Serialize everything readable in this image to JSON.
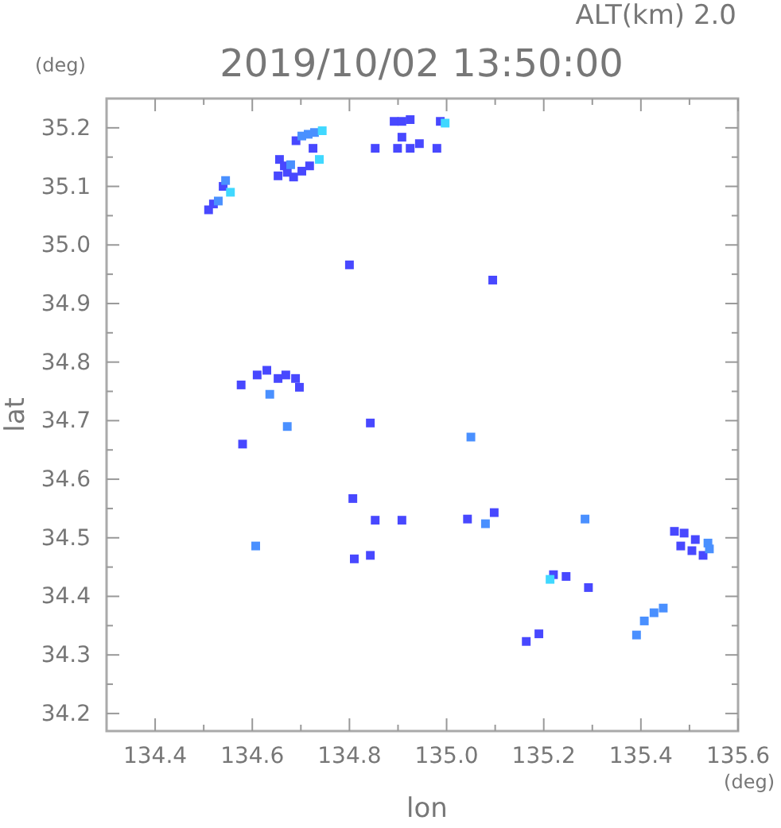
{
  "chart_data": {
    "type": "scatter",
    "title": "2019/10/02 13:50:00",
    "subtitle": "ALT(km) 2.0",
    "xlabel": "lon",
    "ylabel": "lat",
    "annotations": [
      "(deg)",
      "(deg)"
    ],
    "xlim": [
      134.3,
      135.6
    ],
    "ylim": [
      34.17,
      35.25
    ],
    "xticks": [
      134.4,
      {
        "value": 134.5,
        "label": null
      },
      134.6,
      {
        "value": 134.7,
        "label": null
      },
      134.8,
      {
        "value": 134.9,
        "label": null
      },
      {
        "value": 135.0,
        "label": "135.0"
      },
      {
        "value": 135.1,
        "label": null
      },
      135.2,
      {
        "value": 135.3,
        "label": null
      },
      135.4,
      {
        "value": 135.5,
        "label": null
      },
      135.6
    ],
    "yticks": [
      34.2,
      {
        "value": 34.25,
        "label": null
      },
      34.3,
      {
        "value": 34.35,
        "label": null
      },
      34.4,
      {
        "value": 34.45,
        "label": null
      },
      34.5,
      {
        "value": 34.55,
        "label": null
      },
      34.6,
      {
        "value": 34.65,
        "label": null
      },
      34.7,
      {
        "value": 34.75,
        "label": null
      },
      34.8,
      {
        "value": 34.85,
        "label": null
      },
      34.9,
      {
        "value": 34.95,
        "label": null
      },
      {
        "value": 35.0,
        "label": "35.0"
      },
      {
        "value": 35.05,
        "label": null
      },
      35.1,
      {
        "value": 35.15,
        "label": null
      },
      35.2
    ],
    "marker": "square",
    "grid": false,
    "series": [
      {
        "color": "#4848ff",
        "x": [
          134.51,
          134.52,
          134.54,
          134.69,
          134.725,
          134.656,
          134.666,
          134.672,
          134.653,
          134.702,
          134.718,
          134.685,
          134.892,
          134.908,
          134.925,
          134.987,
          134.853,
          134.899,
          134.925,
          134.944,
          134.98,
          134.908,
          134.8,
          135.095,
          134.577,
          134.61,
          134.63,
          134.653,
          134.669,
          134.689,
          134.697,
          134.843,
          134.58,
          134.807,
          134.853,
          134.81,
          134.843,
          134.908,
          135.043,
          135.098,
          135.22,
          135.246,
          135.292,
          135.164,
          135.19,
          135.469,
          135.489,
          135.482,
          135.512,
          135.528,
          135.505
        ],
        "values": [
          35.06,
          35.07,
          35.1,
          35.178,
          35.165,
          35.146,
          35.135,
          35.124,
          35.118,
          35.126,
          35.135,
          35.116,
          35.211,
          35.211,
          35.214,
          35.211,
          35.165,
          35.165,
          35.165,
          35.173,
          35.165,
          35.184,
          34.966,
          34.94,
          34.761,
          34.778,
          34.786,
          34.772,
          34.778,
          34.772,
          34.757,
          34.696,
          34.66,
          34.567,
          34.53,
          34.464,
          34.47,
          34.53,
          34.532,
          34.543,
          34.437,
          34.434,
          34.415,
          34.323,
          34.336,
          34.511,
          34.508,
          34.486,
          34.497,
          34.47,
          34.478
        ]
      },
      {
        "color": "#4a90ff",
        "x": [
          134.53,
          134.545,
          134.702,
          134.715,
          134.728,
          134.679,
          134.636,
          134.672,
          134.607,
          135.05,
          135.08,
          135.285,
          135.391,
          135.407,
          135.427,
          135.446,
          135.538,
          135.541
        ],
        "values": [
          35.075,
          35.11,
          35.186,
          35.189,
          35.192,
          35.137,
          34.745,
          34.69,
          34.486,
          34.672,
          34.524,
          34.532,
          34.334,
          34.358,
          34.372,
          34.38,
          34.491,
          34.481
        ]
      },
      {
        "color": "#40d8ff",
        "x": [
          134.555,
          134.744,
          134.738,
          134.997,
          135.213
        ],
        "values": [
          35.09,
          35.195,
          35.146,
          35.208,
          34.429
        ]
      }
    ]
  }
}
